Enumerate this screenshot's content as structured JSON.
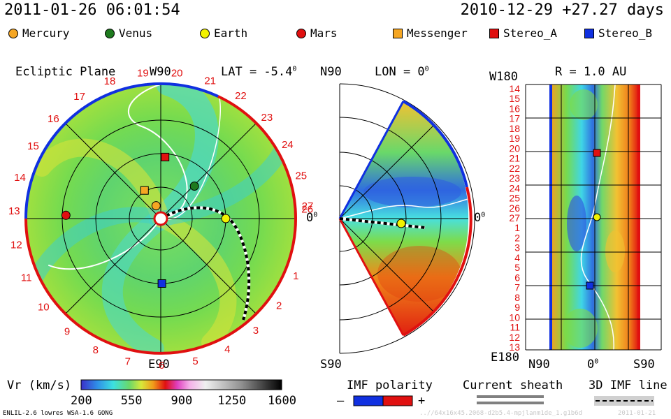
{
  "header": {
    "datetime": "2011-01-26 06:01:54",
    "reference": "2010-12-29 +27.27 days"
  },
  "legend": {
    "items": [
      {
        "label": "Mercury",
        "marker": "circle",
        "color": "#f5a623"
      },
      {
        "label": "Venus",
        "marker": "circle",
        "color": "#1e7a1e"
      },
      {
        "label": "Earth",
        "marker": "circle",
        "color": "#f2f200"
      },
      {
        "label": "Mars",
        "marker": "circle",
        "color": "#e01010"
      },
      {
        "label": "Messenger",
        "marker": "square",
        "color": "#f5a623"
      },
      {
        "label": "Stereo_A",
        "marker": "square",
        "color": "#e01010"
      },
      {
        "label": "Stereo_B",
        "marker": "square",
        "color": "#1030e0"
      }
    ]
  },
  "panels": {
    "ecliptic": {
      "title": "Ecliptic Plane",
      "top_label": "W90",
      "bottom_label": "E90",
      "right_label": "0",
      "right_label_sup": "0",
      "lat_label": "LAT = -5.4",
      "lat_sup": "0"
    },
    "meridional": {
      "top_left": "N90",
      "bottom_left": "S90",
      "lon_label": "LON = 0",
      "lon_sup": "0",
      "right_label": "0",
      "right_label_sup": "0"
    },
    "radial": {
      "top_left": "W180",
      "bottom_left": "E180",
      "r_label": "R = 1.0 AU",
      "x_left": "N90",
      "x_mid": "0",
      "x_mid_sup": "0",
      "x_right": "S90"
    }
  },
  "chart_data": {
    "type": "heatmap",
    "variable": "Vr (km/s)",
    "colorbar": {
      "label": "Vr (km/s)",
      "min": 200,
      "max": 1600,
      "ticks": [
        "200",
        "550",
        "900",
        "1250",
        "1600"
      ]
    },
    "carrington_rotation_labels": [
      "19",
      "20",
      "21",
      "22",
      "23",
      "24",
      "25",
      "26",
      "27",
      "1",
      "2",
      "3",
      "4",
      "5",
      "6",
      "7",
      "8",
      "9",
      "10",
      "11",
      "12",
      "13",
      "14",
      "15",
      "16",
      "17",
      "18"
    ],
    "radial_panel_y_labels": [
      "14",
      "15",
      "16",
      "17",
      "18",
      "19",
      "20",
      "21",
      "22",
      "23",
      "24",
      "25",
      "26",
      "27",
      "1",
      "2",
      "3",
      "4",
      "5",
      "6",
      "7",
      "8",
      "9",
      "10",
      "11",
      "12",
      "13"
    ],
    "bodies_ecliptic": [
      {
        "name": "Earth",
        "angle_deg": 0,
        "r_au": 1.0
      },
      {
        "name": "Venus",
        "angle_deg": 44,
        "r_au": 0.72
      },
      {
        "name": "Mercury",
        "angle_deg": 110,
        "r_au": 0.21
      },
      {
        "name": "Messenger",
        "angle_deg": 120,
        "r_au": 0.5
      },
      {
        "name": "Stereo_A",
        "angle_deg": 86,
        "r_au": 0.95
      },
      {
        "name": "Stereo_B",
        "angle_deg": -89,
        "r_au": 1.0
      },
      {
        "name": "Mars",
        "angle_deg": 178,
        "r_au": 1.46
      }
    ]
  },
  "bottom_legend": {
    "imf_polarity": "IMF polarity",
    "minus": "–",
    "plus": "+",
    "current_sheath": "Current sheath",
    "imf_line": "3D IMF line"
  },
  "footer": {
    "model": "ENLIL-2.6 lowres WSA-1.6 GONG",
    "run_id": "..//64x16x45.2068-d2b5.4-mpjlanm1de_1.g1b6d",
    "run_date": "2011-01-21"
  }
}
